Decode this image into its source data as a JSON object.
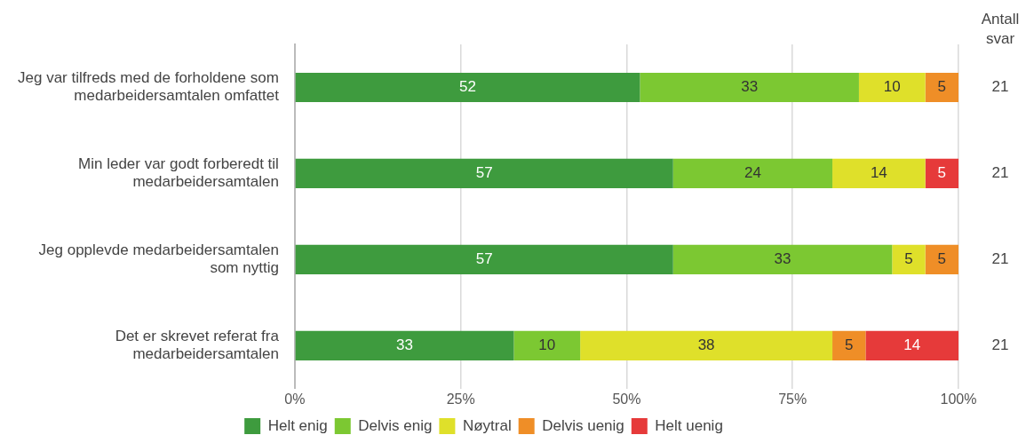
{
  "chart_data": {
    "type": "bar",
    "orientation": "horizontal",
    "stacked": true,
    "data_labels": true,
    "grid": "x",
    "legend": "bottom",
    "categories": [
      "Jeg var tilfreds med de forholdene som medarbeidersamtalen omfattet",
      "Min leder var godt forberedt til medarbeidersamtalen",
      "Jeg opplevde medarbeidersamtalen som nyttig",
      "Det er skrevet referat fra medarbeidersamtalen"
    ],
    "xlim": [
      0,
      100
    ],
    "xticks": [
      {
        "value": 0,
        "label": "0%"
      },
      {
        "value": 25,
        "label": "25%"
      },
      {
        "value": 50,
        "label": "50%"
      },
      {
        "value": 75,
        "label": "75%"
      },
      {
        "value": 100,
        "label": "100%"
      }
    ],
    "series": [
      {
        "name": "Helt enig",
        "color": "#3e9b3e",
        "values": [
          52,
          57,
          57,
          33
        ]
      },
      {
        "name": "Delvis enig",
        "color": "#7cc832",
        "values": [
          33,
          24,
          33,
          10
        ]
      },
      {
        "name": "Nøytral",
        "color": "#dfe02a",
        "values": [
          10,
          14,
          5,
          38
        ]
      },
      {
        "name": "Delvis uenig",
        "color": "#ef8e27",
        "values": [
          5,
          null,
          5,
          5
        ]
      },
      {
        "name": "Helt uenig",
        "color": "#e63a3a",
        "values": [
          null,
          5,
          null,
          14
        ]
      }
    ],
    "annotations": [
      "Antall svar",
      "21",
      "21",
      "21",
      "21"
    ]
  }
}
